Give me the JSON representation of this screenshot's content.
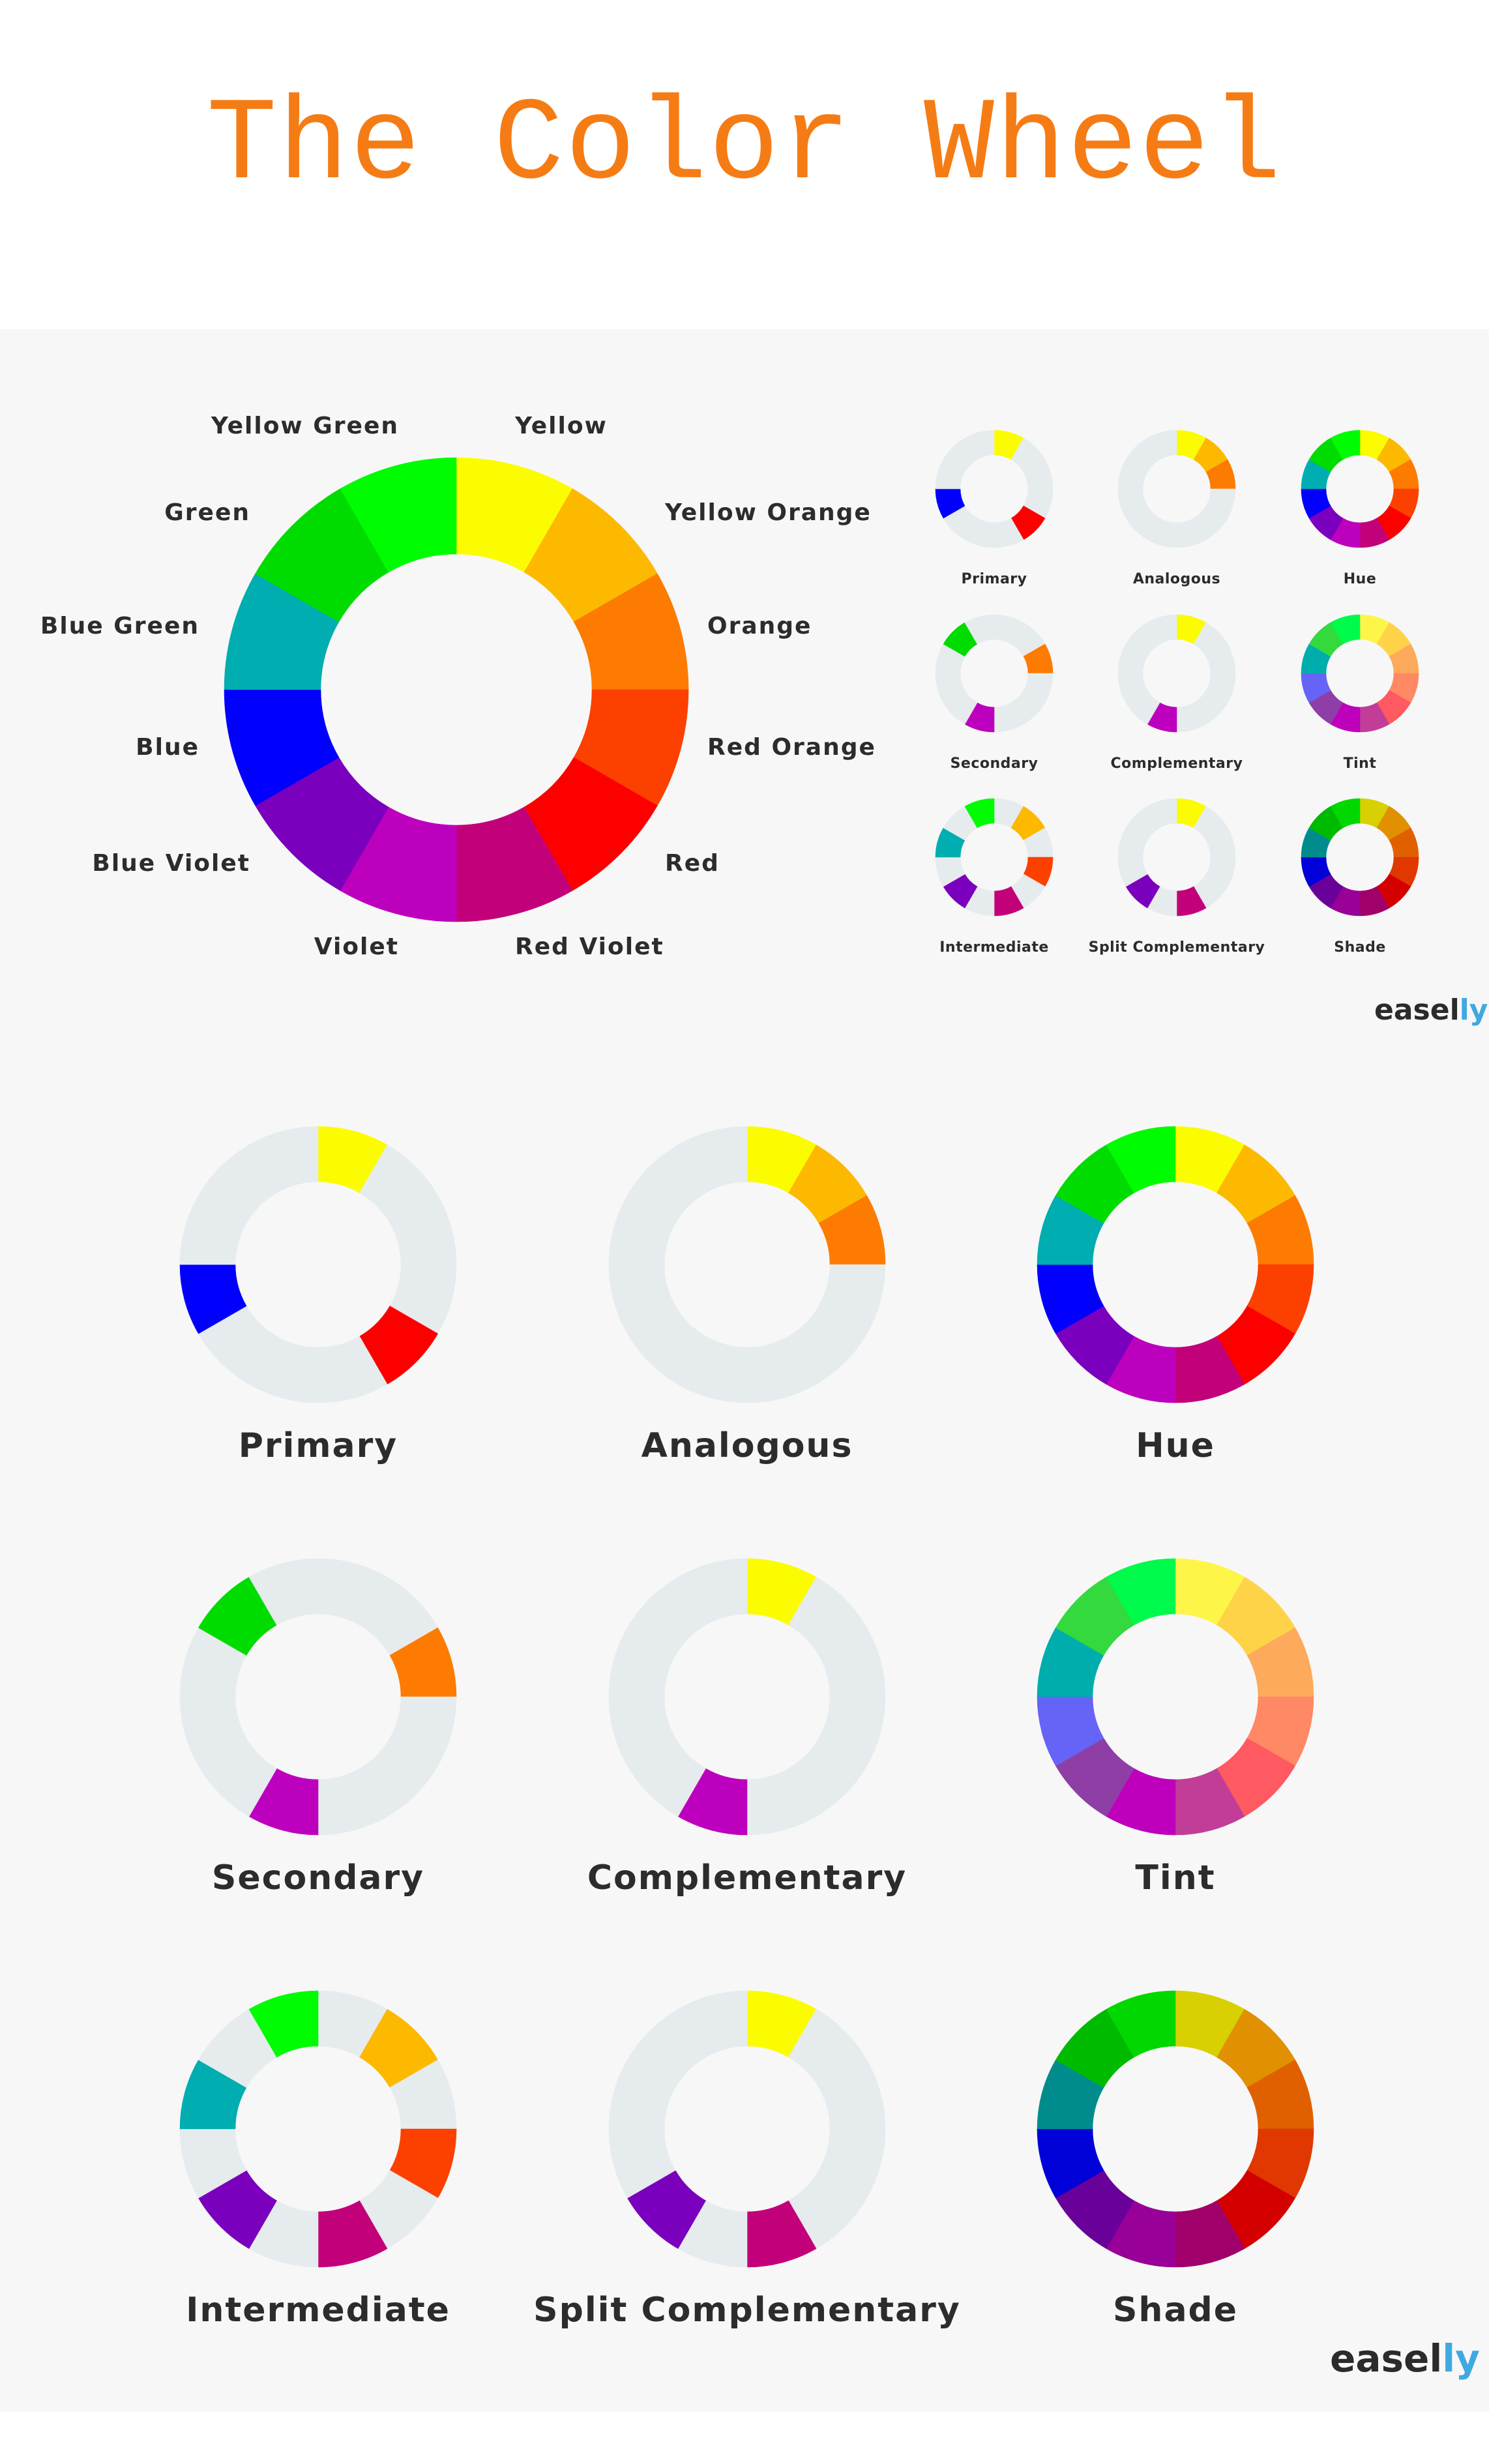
{
  "title": "The Color Wheel",
  "colors": {
    "title": "#f57c14",
    "ring_gray": "#e6ebed",
    "panel": "#f7f7f7",
    "brand_accent": "#3fa9e0"
  },
  "hue_names": [
    "Yellow",
    "Yellow Orange",
    "Orange",
    "Red Orange",
    "Red",
    "Red Violet",
    "Violet",
    "Blue Violet",
    "Blue",
    "Blue Green",
    "Green",
    "Yellow Green"
  ],
  "hue_colors": [
    "#fcfc00",
    "#fcb900",
    "#fc7b00",
    "#fc4000",
    "#fc0000",
    "#c2007a",
    "#bd00bd",
    "#7a00bd",
    "#0000fc",
    "#00adb0",
    "#00dc00",
    "#00fc00"
  ],
  "tint_colors": [
    "#fdf649",
    "#fed348",
    "#feaa5c",
    "#ff8865",
    "#ff5961",
    "#c13d98",
    "#be00bd",
    "#8f3ea6",
    "#6663f7",
    "#00adad",
    "#33d93d",
    "#00fa4c"
  ],
  "shade_colors": [
    "#d8d000",
    "#e09000",
    "#e06000",
    "#e03800",
    "#d40000",
    "#a0006a",
    "#980098",
    "#6a009a",
    "#0000d8",
    "#008c8c",
    "#00ba00",
    "#00d800"
  ],
  "schemes": [
    {
      "label": "Primary",
      "palette": "hue",
      "indices": [
        0,
        4,
        8
      ]
    },
    {
      "label": "Analogous",
      "palette": "hue",
      "indices": [
        0,
        1,
        2
      ]
    },
    {
      "label": "Hue",
      "palette": "hue",
      "indices": [
        0,
        1,
        2,
        3,
        4,
        5,
        6,
        7,
        8,
        9,
        10,
        11
      ]
    },
    {
      "label": "Secondary",
      "palette": "hue",
      "indices": [
        2,
        6,
        10
      ]
    },
    {
      "label": "Complementary",
      "palette": "hue",
      "indices": [
        0,
        6
      ]
    },
    {
      "label": "Tint",
      "palette": "tint",
      "indices": [
        0,
        1,
        2,
        3,
        4,
        5,
        6,
        7,
        8,
        9,
        10,
        11
      ]
    },
    {
      "label": "Intermediate",
      "palette": "hue",
      "indices": [
        1,
        3,
        5,
        7,
        9,
        11
      ]
    },
    {
      "label": "Split Complementary",
      "palette": "hue",
      "indices": [
        0,
        5,
        7
      ]
    },
    {
      "label": "Shade",
      "palette": "shade",
      "indices": [
        0,
        1,
        2,
        3,
        4,
        5,
        6,
        7,
        8,
        9,
        10,
        11
      ]
    }
  ],
  "brand": {
    "prefix": "easel",
    "suffix": "ly"
  }
}
